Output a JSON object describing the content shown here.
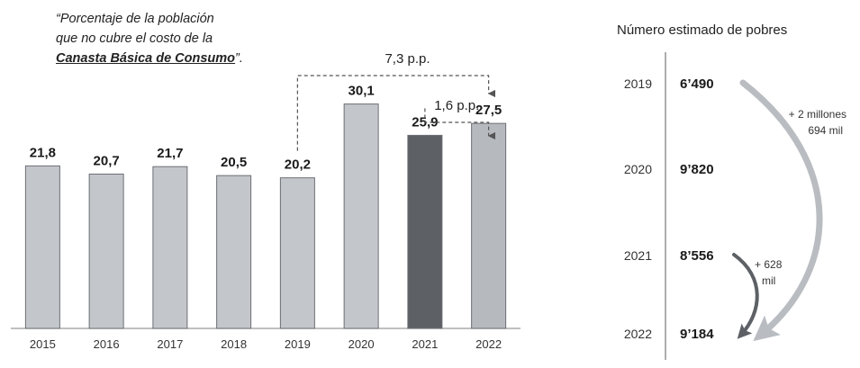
{
  "note": {
    "line1": "“Porcentaje de la población",
    "line2": "que no cubre el costo de la",
    "basket": "Canasta Básica de Consumo",
    "end": "”."
  },
  "chart_data": [
    {
      "type": "bar",
      "title": "",
      "xlabel": "",
      "ylabel": "",
      "categories": [
        "2015",
        "2016",
        "2017",
        "2018",
        "2019",
        "2020",
        "2021",
        "2022"
      ],
      "values": [
        21.8,
        20.7,
        21.7,
        20.5,
        20.2,
        30.1,
        25.9,
        27.5
      ],
      "value_labels": [
        "21,8",
        "20,7",
        "21,7",
        "20,5",
        "20,2",
        "30,1",
        "25,9",
        "27,5"
      ],
      "ylim": [
        0,
        35
      ],
      "grid": false,
      "colors": {
        "default": "#c3c7cb",
        "2021": "#5d6166",
        "2022": "#b6babe"
      },
      "annotations": [
        {
          "from": "2019",
          "to": "2022",
          "label": "7,3 p.p."
        },
        {
          "from": "2021",
          "to": "2022",
          "label": "1,6 p.p."
        }
      ]
    },
    {
      "type": "table",
      "title": "Número estimado de pobres",
      "rows": [
        {
          "year": "2019",
          "value": "6’490"
        },
        {
          "year": "2020",
          "value": "9’820"
        },
        {
          "year": "2021",
          "value": "8’556"
        },
        {
          "year": "2022",
          "value": "9’184"
        }
      ],
      "arrows": [
        {
          "from": "2019",
          "to": "2022",
          "label_line1": "+ 2 millones",
          "label_line2": "694 mil",
          "color": "#b9bdc2"
        },
        {
          "from": "2021",
          "to": "2022",
          "label_line1": "+ 628",
          "label_line2": "mil",
          "color": "#5d6166"
        }
      ]
    }
  ]
}
